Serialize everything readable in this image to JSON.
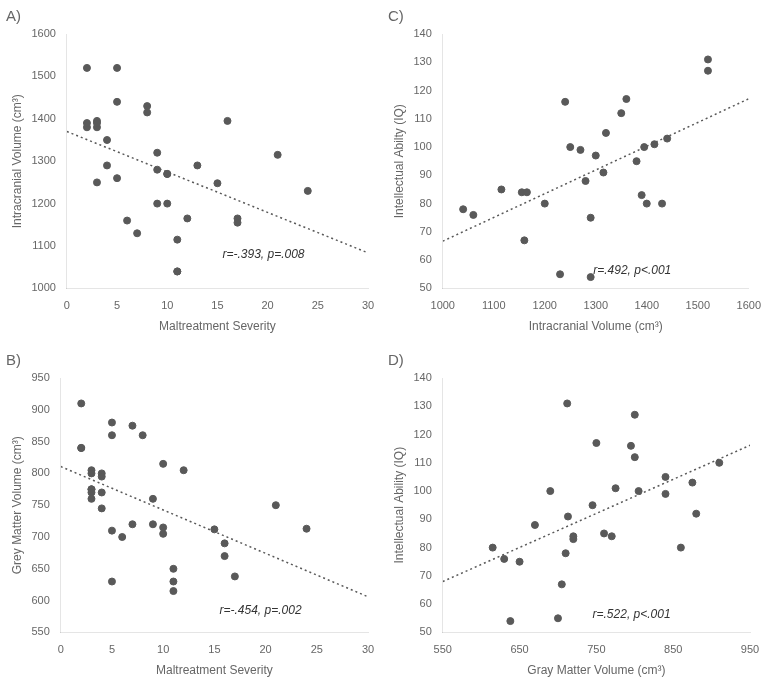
{
  "chart_data": [
    {
      "type": "scatter",
      "title": "A)",
      "xlabel": "Maltreatment Severity",
      "ylabel": "Intracranial Volume (cm³)",
      "xlim": [
        0,
        30
      ],
      "ylim": [
        1000,
        1600
      ],
      "xticks": [
        0,
        5,
        10,
        15,
        20,
        25,
        30
      ],
      "yticks": [
        1000,
        1100,
        1200,
        1300,
        1400,
        1500,
        1600
      ],
      "grid": false,
      "color": "#595959",
      "annotations": [
        {
          "text": "r=-.393, p=.008",
          "x": 15.5,
          "y": 1065
        }
      ],
      "x": [
        2,
        2,
        2,
        3,
        3,
        3,
        3,
        4,
        4,
        5,
        5,
        5,
        6,
        7,
        8,
        8,
        9,
        9,
        9,
        10,
        10,
        10,
        11,
        11,
        11,
        12,
        13,
        15,
        16,
        17,
        17,
        21,
        24
      ],
      "y": [
        1520,
        1380,
        1390,
        1380,
        1395,
        1390,
        1250,
        1350,
        1290,
        1520,
        1440,
        1260,
        1160,
        1130,
        1430,
        1415,
        1320,
        1280,
        1200,
        1270,
        1270,
        1200,
        1115,
        1040,
        1040,
        1165,
        1290,
        1248,
        1395,
        1165,
        1155,
        1315,
        1230
      ],
      "trend_line": {
        "x": [
          0,
          30
        ],
        "y": [
          1370.0744,
          1083.858
        ],
        "color": "#595959",
        "line_style": "dotted"
      }
    },
    {
      "type": "scatter",
      "title": "C)",
      "xlabel": "Intracranial Volume (cm³)",
      "ylabel": "Intellectual Abilty (IQ)",
      "xlim": [
        1000,
        1600
      ],
      "ylim": [
        50,
        140
      ],
      "xticks": [
        1000,
        1100,
        1200,
        1300,
        1400,
        1500,
        1600
      ],
      "yticks": [
        50,
        60,
        70,
        80,
        90,
        100,
        110,
        120,
        130,
        140
      ],
      "grid": false,
      "color": "#595959",
      "annotations": [
        {
          "text": "r=.492, p<.001",
          "x": 1295,
          "y": 54
        }
      ],
      "x": [
        1040,
        1060,
        1115,
        1155,
        1160,
        1165,
        1200,
        1230,
        1240,
        1250,
        1270,
        1280,
        1290,
        1290,
        1300,
        1315,
        1320,
        1350,
        1360,
        1380,
        1390,
        1395,
        1400,
        1415,
        1430,
        1440,
        1520,
        1520
      ],
      "y": [
        78,
        76,
        85,
        84,
        67,
        84,
        80,
        55,
        116,
        100,
        99,
        88,
        75,
        54,
        97,
        91,
        105,
        112,
        117,
        95,
        83,
        100,
        80,
        101,
        80,
        103,
        131,
        127
      ],
      "trend_line": {
        "x": [
          1000,
          1600
        ],
        "y": [
          66.7038,
          117.0874
        ],
        "color": "#595959",
        "line_style": "dotted"
      }
    },
    {
      "type": "scatter",
      "title": "B)",
      "xlabel": "Maltreatment Severity",
      "ylabel": "Grey Matter Volume (cm³)",
      "xlim": [
        0,
        30
      ],
      "ylim": [
        550,
        950
      ],
      "xticks": [
        0,
        5,
        10,
        15,
        20,
        25,
        30
      ],
      "yticks": [
        550,
        600,
        650,
        700,
        750,
        800,
        850,
        900,
        950
      ],
      "grid": false,
      "color": "#595959",
      "annotations": [
        {
          "text": "r=-.454, p=.002",
          "x": 15.5,
          "y": 575
        }
      ],
      "x": [
        2,
        2,
        2,
        3,
        3,
        3,
        3,
        3,
        3,
        4,
        4,
        4,
        4,
        5,
        5,
        5,
        5,
        6,
        7,
        7,
        8,
        9,
        9,
        10,
        10,
        10,
        11,
        11,
        11,
        12,
        15,
        16,
        16,
        17,
        21,
        24
      ],
      "y": [
        910,
        840,
        840,
        805,
        800,
        775,
        775,
        770,
        760,
        800,
        795,
        770,
        745,
        880,
        860,
        710,
        630,
        700,
        875,
        720,
        860,
        760,
        720,
        815,
        715,
        705,
        650,
        630,
        615,
        805,
        712,
        690,
        670,
        638,
        750,
        713
      ],
      "trend_line": {
        "x": [
          0,
          30
        ],
        "y": [
          810.7461,
          606.0365
        ],
        "color": "#595959",
        "line_style": "dotted"
      }
    },
    {
      "type": "scatter",
      "title": "D)",
      "xlabel": "Gray Matter Volume (cm³)",
      "ylabel": "Intellectual Ability (IQ)",
      "xlim": [
        550,
        950
      ],
      "ylim": [
        50,
        140
      ],
      "xticks": [
        550,
        650,
        750,
        850,
        950
      ],
      "yticks": [
        50,
        60,
        70,
        80,
        90,
        100,
        110,
        120,
        130,
        140
      ],
      "grid": false,
      "color": "#595959",
      "annotations": [
        {
          "text": "r=.522, p<.001",
          "x": 745,
          "y": 54
        }
      ],
      "x": [
        615,
        630,
        638,
        650,
        670,
        690,
        700,
        705,
        710,
        712,
        713,
        720,
        720,
        745,
        750,
        760,
        770,
        775,
        795,
        800,
        800,
        805,
        840,
        840,
        860,
        875,
        880,
        910
      ],
      "y": [
        80,
        76,
        54,
        75,
        88,
        100,
        55,
        67,
        78,
        131,
        91,
        83,
        84,
        95,
        117,
        85,
        84,
        101,
        116,
        127,
        112,
        100,
        99,
        105,
        80,
        103,
        92,
        110
      ],
      "trend_line": {
        "x": [
          550,
          950
        ],
        "y": [
          67.9892,
          116.1964
        ],
        "color": "#595959",
        "line_style": "dotted"
      }
    }
  ]
}
